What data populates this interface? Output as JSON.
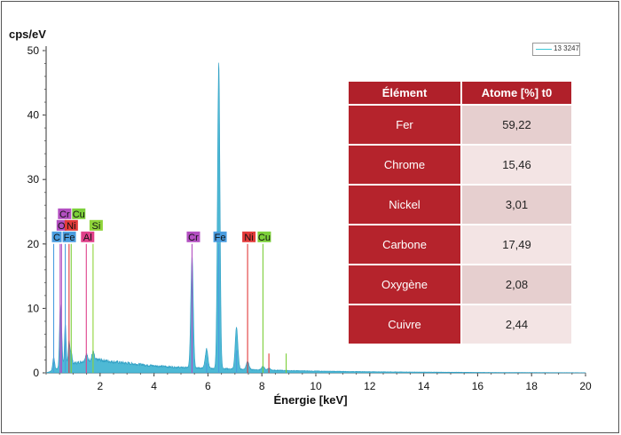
{
  "colors": {
    "spectrum": "#45b5d3",
    "header_bg": "#b0202a",
    "label_red": "#b5232c"
  },
  "legend": {
    "label": "13 3247",
    "color": "#3cc8d8"
  },
  "table": {
    "headers": [
      "Élément",
      "Atome [%] t0"
    ],
    "rows": [
      {
        "element": "Fer",
        "value": "59,22"
      },
      {
        "element": "Chrome",
        "value": "15,46"
      },
      {
        "element": "Nickel",
        "value": "3,01"
      },
      {
        "element": "Carbone",
        "value": "17,49"
      },
      {
        "element": "Oxygène",
        "value": "2,08"
      },
      {
        "element": "Cuivre",
        "value": "2,44"
      }
    ]
  },
  "chart_data": {
    "type": "area",
    "title": "",
    "xlabel": "Énergie [keV]",
    "ylabel": "cps/eV",
    "xlim": [
      0,
      20
    ],
    "ylim": [
      0,
      50
    ],
    "xticks": [
      2,
      4,
      6,
      8,
      10,
      12,
      14,
      16,
      18,
      20
    ],
    "yticks": [
      0,
      10,
      20,
      30,
      40,
      50
    ],
    "grid": false,
    "legend_position": "top-right",
    "background": [
      [
        0.2,
        0.3
      ],
      [
        0.5,
        0.8
      ],
      [
        0.8,
        1.3
      ],
      [
        1.2,
        1.6
      ],
      [
        1.6,
        2.0
      ],
      [
        2.0,
        2.0
      ],
      [
        2.5,
        1.7
      ],
      [
        3.0,
        1.5
      ],
      [
        3.5,
        1.3
      ],
      [
        4.0,
        1.1
      ],
      [
        4.5,
        0.95
      ],
      [
        5.0,
        0.85
      ],
      [
        5.5,
        0.8
      ],
      [
        6.0,
        0.7
      ],
      [
        6.5,
        0.65
      ],
      [
        7.0,
        0.6
      ],
      [
        8.0,
        0.45
      ],
      [
        9.0,
        0.35
      ],
      [
        10.0,
        0.28
      ],
      [
        12.0,
        0.18
      ],
      [
        14.0,
        0.12
      ],
      [
        16.0,
        0.08
      ],
      [
        18.0,
        0.05
      ],
      [
        20.0,
        0.03
      ]
    ],
    "peaks": [
      {
        "center": 0.28,
        "height": 2.0,
        "width": 0.035
      },
      {
        "center": 0.52,
        "height": 8.0,
        "width": 0.03
      },
      {
        "center": 0.57,
        "height": 5.0,
        "width": 0.03
      },
      {
        "center": 0.71,
        "height": 6.5,
        "width": 0.03
      },
      {
        "center": 0.85,
        "height": 3.5,
        "width": 0.03
      },
      {
        "center": 0.93,
        "height": 2.0,
        "width": 0.03
      },
      {
        "center": 1.49,
        "height": 1.0,
        "width": 0.04
      },
      {
        "center": 1.74,
        "height": 1.3,
        "width": 0.04
      },
      {
        "center": 5.41,
        "height": 17.5,
        "width": 0.045
      },
      {
        "center": 5.95,
        "height": 3.0,
        "width": 0.05
      },
      {
        "center": 6.4,
        "height": 47.5,
        "width": 0.045
      },
      {
        "center": 7.06,
        "height": 6.5,
        "width": 0.05
      },
      {
        "center": 7.47,
        "height": 1.3,
        "width": 0.05
      },
      {
        "center": 8.04,
        "height": 0.6,
        "width": 0.05
      },
      {
        "center": 8.26,
        "height": 0.3,
        "width": 0.05
      }
    ],
    "element_lines": [
      {
        "label": "C",
        "x": 0.28,
        "y": 20,
        "color": "#4a9de0"
      },
      {
        "label": "O",
        "x": 0.52,
        "y": 20,
        "color": "#b34fc1"
      },
      {
        "label": "Cr",
        "x": 0.57,
        "y": 20,
        "color": "#b34fc1"
      },
      {
        "label": "Fe",
        "x": 0.71,
        "y": 20,
        "color": "#4a9de0"
      },
      {
        "label": "Ni",
        "x": 0.85,
        "y": 20,
        "color": "#e23a3a"
      },
      {
        "label": "Cu",
        "x": 0.93,
        "y": 20,
        "color": "#7ccf3a"
      },
      {
        "label": "Al",
        "x": 1.49,
        "y": 20,
        "color": "#e0408a"
      },
      {
        "label": "Si",
        "x": 1.74,
        "y": 20,
        "color": "#8fd43a"
      },
      {
        "label": "Cr",
        "x": 5.41,
        "y": 20,
        "color": "#b34fc1"
      },
      {
        "label": "Fe",
        "x": 6.4,
        "y": 20,
        "color": "#4a9de0"
      },
      {
        "label": "Ni",
        "x": 7.47,
        "y": 20,
        "color": "#e23a3a"
      },
      {
        "label": "Cu",
        "x": 8.04,
        "y": 20,
        "color": "#7ccf3a"
      },
      {
        "label": "",
        "x": 5.95,
        "y": 1.5,
        "color": "#4a9de0"
      },
      {
        "label": "",
        "x": 7.06,
        "y": 3.5,
        "color": "#4a9de0"
      },
      {
        "label": "",
        "x": 8.26,
        "y": 3.0,
        "color": "#e23a3a"
      },
      {
        "label": "",
        "x": 8.9,
        "y": 3.0,
        "color": "#7ccf3a"
      }
    ]
  }
}
